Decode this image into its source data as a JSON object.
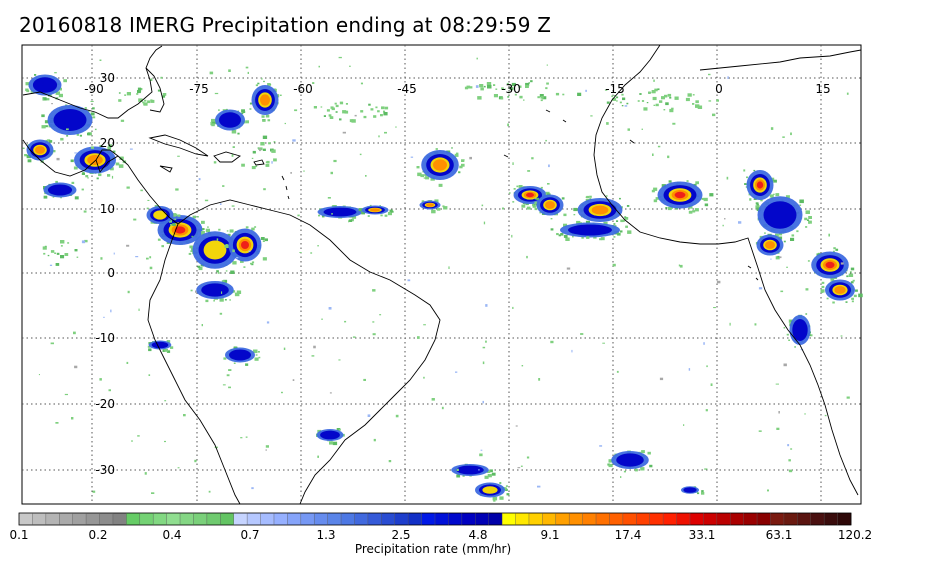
{
  "title": "20160818 IMERG Precipitation ending at 08:29:59 Z",
  "map": {
    "region": "Tropical Atlantic / Caribbean / South America / West Africa",
    "lon_labels": [
      "-90",
      "-75",
      "-60",
      "-45",
      "-30",
      "-15",
      "0",
      "15"
    ],
    "lat_labels": [
      "30",
      "20",
      "10",
      "0",
      "-10",
      "-20",
      "-30"
    ],
    "grid": "dotted",
    "coastline_color": "#000000"
  },
  "colorbar": {
    "label": "Precipitation rate (mm/hr)",
    "tick_labels": [
      "0.1",
      "0.2",
      "0.4",
      "0.7",
      "1.3",
      "2.5",
      "4.8",
      "9.1",
      "17.4",
      "33.1",
      "63.1",
      "120.2"
    ],
    "colors": [
      "#c8c8c8",
      "#bebebe",
      "#b4b4b4",
      "#aaaaaa",
      "#a0a0a0",
      "#969696",
      "#8c8c8c",
      "#828282",
      "#66cc66",
      "#74d274",
      "#82d882",
      "#90de90",
      "#84d684",
      "#7ad07a",
      "#6fca6f",
      "#63c463",
      "#c6d4ff",
      "#b6c8ff",
      "#a6bcff",
      "#96b0ff",
      "#86a4fa",
      "#7698f4",
      "#668cee",
      "#5a84e8",
      "#4d78e4",
      "#4169de",
      "#355ad8",
      "#294cd2",
      "#1e3ecc",
      "#1230c6",
      "#0018e6",
      "#0010d8",
      "#0008cc",
      "#0000c0",
      "#0000b4",
      "#0000a8",
      "#ffff00",
      "#ffe800",
      "#ffd000",
      "#ffb800",
      "#ffa000",
      "#ff9000",
      "#ff8000",
      "#ff7000",
      "#ff6000",
      "#ff5000",
      "#ff4000",
      "#ff3000",
      "#ff2000",
      "#ee1000",
      "#dd0000",
      "#cc0000",
      "#bb0000",
      "#aa0000",
      "#990000",
      "#880000",
      "#7a1a10",
      "#6a1a10",
      "#5a1410",
      "#4a1010",
      "#3a0c0c",
      "#2e0808"
    ]
  }
}
